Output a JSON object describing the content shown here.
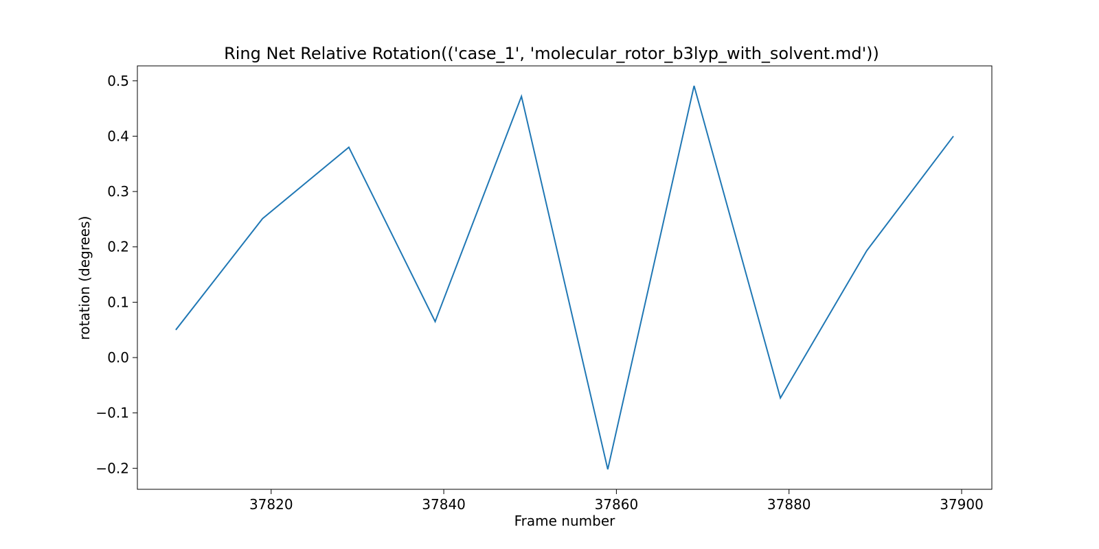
{
  "chart_data": {
    "type": "line",
    "title": "Ring Net Relative Rotation(('case_1', 'molecular_rotor_b3lyp_with_solvent.md'))",
    "xlabel": "Frame number",
    "ylabel": "rotation (degrees)",
    "xlim": [
      37804.5,
      37903.5
    ],
    "ylim": [
      -0.238,
      0.527
    ],
    "xticks": [
      37820,
      37840,
      37860,
      37880,
      37900
    ],
    "yticks": [
      -0.2,
      -0.1,
      0.0,
      0.1,
      0.2,
      0.3,
      0.4,
      0.5
    ],
    "xtick_labels": [
      "37820",
      "37840",
      "37860",
      "37880",
      "37900"
    ],
    "ytick_labels": [
      "−0.2",
      "−0.1",
      "0.0",
      "0.1",
      "0.2",
      "0.3",
      "0.4",
      "0.5"
    ],
    "grid": false,
    "series": [
      {
        "color": "#1f77b4",
        "x": [
          37809,
          37819,
          37829,
          37839,
          37849,
          37859,
          37869,
          37879,
          37889,
          37899
        ],
        "y": [
          0.051,
          0.251,
          0.38,
          0.065,
          0.472,
          -0.202,
          0.491,
          -0.073,
          0.193,
          0.399
        ]
      }
    ]
  }
}
